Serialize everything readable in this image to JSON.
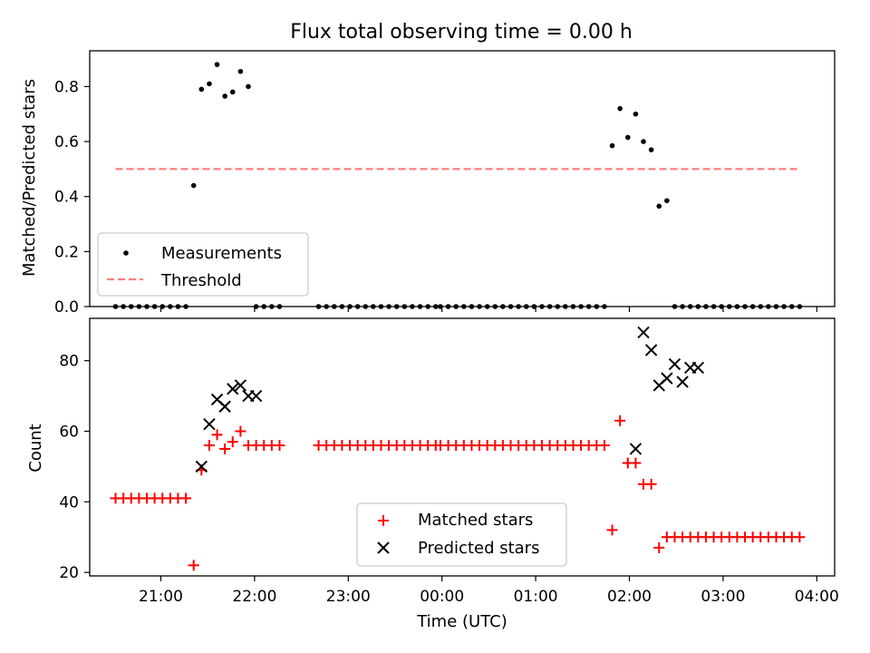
{
  "chart_data": [
    {
      "type": "scatter",
      "title": "Flux total observing time = 0.00 h",
      "ylabel": "Matched/Predicted stars",
      "xlabel": "",
      "ylim": [
        0,
        0.93
      ],
      "yticks": [
        "0.0",
        "0.2",
        "0.4",
        "0.6",
        "0.8"
      ],
      "ytick_values": [
        0,
        0.2,
        0.4,
        0.6,
        0.8
      ],
      "grid": false,
      "legend_position": "lower-left",
      "series": [
        {
          "name": "Measurements",
          "marker": "dot",
          "color": "#000000",
          "x": [
            "20:31",
            "20:36",
            "20:41",
            "20:46",
            "20:51",
            "20:56",
            "21:01",
            "21:06",
            "21:11",
            "21:16",
            "21:21",
            "21:26",
            "21:31",
            "21:36",
            "21:41",
            "21:46",
            "21:51",
            "21:56",
            "22:01",
            "22:06",
            "22:11",
            "22:16",
            "22:41",
            "22:46",
            "22:51",
            "22:56",
            "23:01",
            "23:06",
            "23:11",
            "23:16",
            "23:21",
            "23:26",
            "23:31",
            "23:36",
            "23:41",
            "23:46",
            "23:51",
            "23:56",
            "23:59",
            "00:04",
            "00:09",
            "00:14",
            "00:19",
            "00:24",
            "00:29",
            "00:34",
            "00:39",
            "00:44",
            "00:49",
            "00:54",
            "00:59",
            "01:04",
            "01:09",
            "01:14",
            "01:19",
            "01:24",
            "01:29",
            "01:34",
            "01:39",
            "01:44",
            "01:49",
            "01:54",
            "01:59",
            "02:04",
            "02:09",
            "02:14",
            "02:19",
            "02:24",
            "02:29",
            "02:34",
            "02:39",
            "02:44",
            "02:49",
            "02:54",
            "02:59",
            "03:04",
            "03:09",
            "03:14",
            "03:19",
            "03:24",
            "03:29",
            "03:34",
            "03:39",
            "03:44",
            "03:49"
          ],
          "y": [
            0,
            0,
            0,
            0,
            0,
            0,
            0,
            0,
            0,
            0,
            0.44,
            0.79,
            0.81,
            0.88,
            0.765,
            0.78,
            0.855,
            0.8,
            0,
            0,
            0,
            0,
            0,
            0,
            0,
            0,
            0,
            0,
            0,
            0,
            0,
            0,
            0,
            0,
            0,
            0,
            0,
            0,
            0,
            0,
            0,
            0,
            0,
            0,
            0,
            0,
            0,
            0,
            0,
            0,
            0,
            0,
            0,
            0,
            0,
            0,
            0,
            0,
            0,
            0,
            0.585,
            0.72,
            0.615,
            0.7,
            0.6,
            0.57,
            0.365,
            0.385,
            0,
            0,
            0,
            0,
            0,
            0,
            0,
            0,
            0,
            0,
            0,
            0,
            0,
            0,
            0,
            0,
            0
          ]
        },
        {
          "name": "Threshold",
          "style": "dashed",
          "color": "#ff7f7f",
          "x": [
            "20:31",
            "03:49"
          ],
          "y": [
            0.5,
            0.5
          ]
        }
      ]
    },
    {
      "type": "scatter",
      "title": "",
      "xlabel": "Time (UTC)",
      "ylabel": "Count",
      "ylim": [
        19,
        92
      ],
      "yticks": [
        "20",
        "40",
        "60",
        "80"
      ],
      "ytick_values": [
        20,
        40,
        60,
        80
      ],
      "xticks": [
        "21:00",
        "22:00",
        "23:00",
        "00:00",
        "01:00",
        "02:00",
        "03:00",
        "04:00"
      ],
      "grid": false,
      "legend_position": "lower-center",
      "series": [
        {
          "name": "Matched stars",
          "marker": "plus",
          "color": "#ff0000",
          "x": [
            "20:31",
            "20:36",
            "20:41",
            "20:46",
            "20:51",
            "20:56",
            "21:01",
            "21:06",
            "21:11",
            "21:16",
            "21:21",
            "21:26",
            "21:31",
            "21:36",
            "21:41",
            "21:46",
            "21:51",
            "21:56",
            "22:01",
            "22:06",
            "22:11",
            "22:16",
            "22:41",
            "22:46",
            "22:51",
            "22:56",
            "23:01",
            "23:06",
            "23:11",
            "23:16",
            "23:21",
            "23:26",
            "23:31",
            "23:36",
            "23:41",
            "23:46",
            "23:51",
            "23:56",
            "23:59",
            "00:04",
            "00:09",
            "00:14",
            "00:19",
            "00:24",
            "00:29",
            "00:34",
            "00:39",
            "00:44",
            "00:49",
            "00:54",
            "00:59",
            "01:04",
            "01:09",
            "01:14",
            "01:19",
            "01:24",
            "01:29",
            "01:34",
            "01:39",
            "01:44",
            "01:49",
            "01:54",
            "01:59",
            "02:04",
            "02:09",
            "02:14",
            "02:19",
            "02:24",
            "02:29",
            "02:34",
            "02:39",
            "02:44",
            "02:49",
            "02:54",
            "02:59",
            "03:04",
            "03:09",
            "03:14",
            "03:19",
            "03:24",
            "03:29",
            "03:34",
            "03:39",
            "03:44",
            "03:49"
          ],
          "y": [
            41,
            41,
            41,
            41,
            41,
            41,
            41,
            41,
            41,
            41,
            22,
            49,
            56,
            59,
            55,
            57,
            60,
            56,
            56,
            56,
            56,
            56,
            56,
            56,
            56,
            56,
            56,
            56,
            56,
            56,
            56,
            56,
            56,
            56,
            56,
            56,
            56,
            56,
            56,
            56,
            56,
            56,
            56,
            56,
            56,
            56,
            56,
            56,
            56,
            56,
            56,
            56,
            56,
            56,
            56,
            56,
            56,
            56,
            56,
            56,
            32,
            63,
            51,
            51,
            45,
            45,
            27,
            30,
            30,
            30,
            30,
            30,
            30,
            30,
            30,
            30,
            30,
            30,
            30,
            30,
            30,
            30,
            30,
            30,
            30
          ]
        },
        {
          "name": "Predicted stars",
          "marker": "x",
          "color": "#000000",
          "x": [
            "21:26",
            "21:31",
            "21:36",
            "21:41",
            "21:46",
            "21:51",
            "21:56",
            "22:01",
            "02:04",
            "02:09",
            "02:14",
            "02:19",
            "02:24",
            "02:29",
            "02:34",
            "02:39",
            "02:44"
          ],
          "y": [
            50,
            62,
            69,
            67,
            72,
            73,
            70,
            70,
            55,
            88,
            83,
            73,
            75,
            79,
            74,
            78,
            78
          ]
        }
      ]
    }
  ]
}
